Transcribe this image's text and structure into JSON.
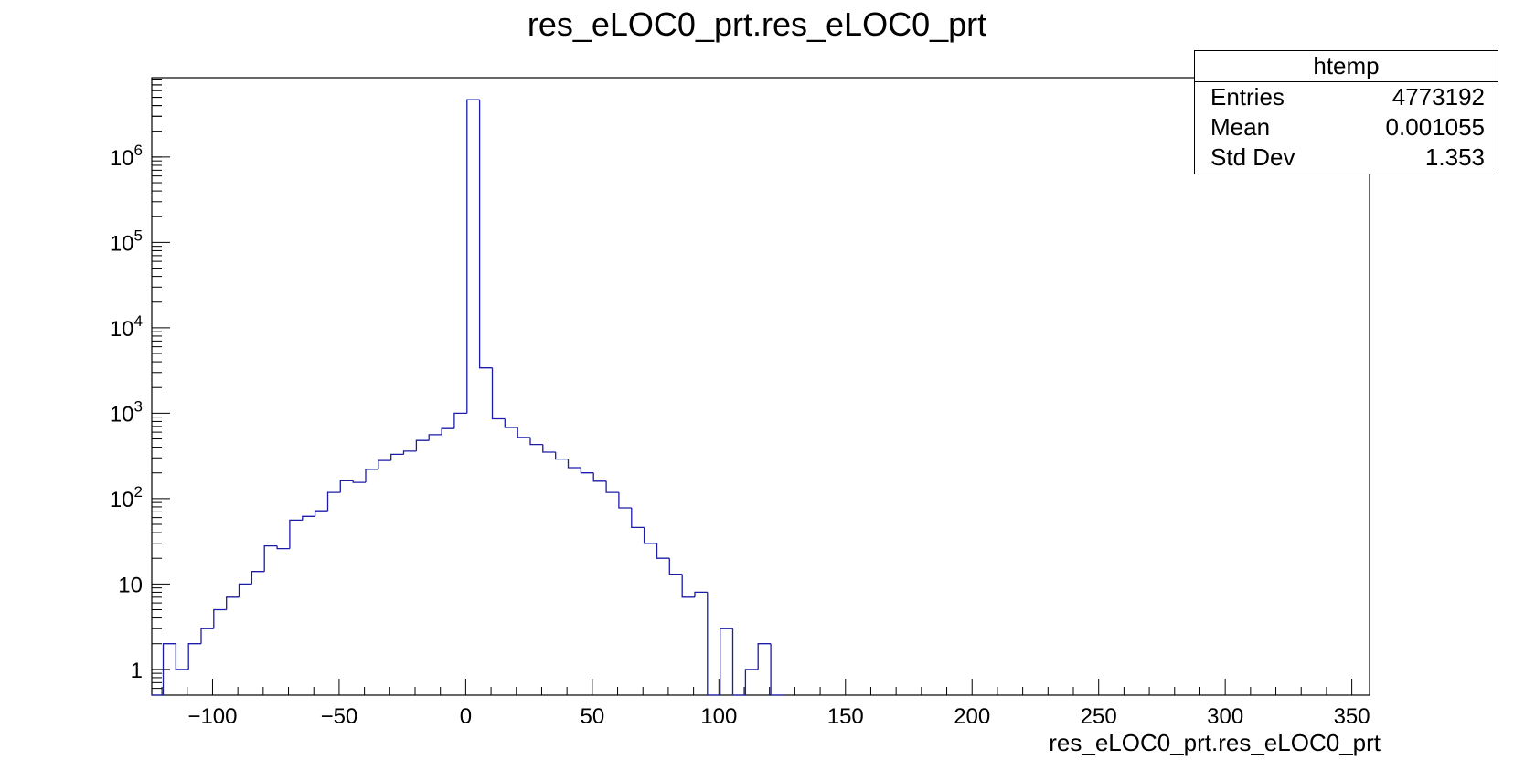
{
  "title": "res_eLOC0_prt.res_eLOC0_prt",
  "xlabel": "res_eLOC0_prt.res_eLOC0_prt",
  "stats": {
    "name": "htemp",
    "rows": [
      {
        "label": "Entries",
        "value": "4773192"
      },
      {
        "label": "Mean",
        "value": "0.001055"
      },
      {
        "label": "Std Dev",
        "value": "1.353"
      }
    ]
  },
  "colors": {
    "line": "#1c1ca8",
    "axis": "#000000"
  },
  "chart_data": {
    "type": "bar",
    "style": "step histogram",
    "title": "res_eLOC0_prt.res_eLOC0_prt",
    "xlabel": "res_eLOC0_prt.res_eLOC0_prt",
    "ylabel": "",
    "xlim": [
      -124,
      357
    ],
    "ylim": [
      0.5,
      8500000
    ],
    "y_scale": "log",
    "bin_width": 5,
    "x_ticks": [
      -100,
      -50,
      0,
      50,
      100,
      150,
      200,
      250,
      300,
      350
    ],
    "x_tick_labels": [
      "−100",
      "−50",
      "0",
      "50",
      "100",
      "150",
      "200",
      "250",
      "300",
      "350"
    ],
    "y_ticks": [
      1,
      10,
      100,
      1000,
      10000,
      100000,
      1000000
    ],
    "y_tick_labels": [
      "1",
      "10",
      "10^2",
      "10^3",
      "10^4",
      "10^5",
      "10^6"
    ],
    "bins": [
      {
        "x": -124,
        "y": 0
      },
      {
        "x": -119.5,
        "y": 2
      },
      {
        "x": -114.5,
        "y": 1
      },
      {
        "x": -109.5,
        "y": 2
      },
      {
        "x": -104.5,
        "y": 3
      },
      {
        "x": -99.5,
        "y": 5
      },
      {
        "x": -94.5,
        "y": 7
      },
      {
        "x": -89.5,
        "y": 10
      },
      {
        "x": -84.5,
        "y": 14
      },
      {
        "x": -79.5,
        "y": 28
      },
      {
        "x": -74.5,
        "y": 26
      },
      {
        "x": -69.5,
        "y": 56
      },
      {
        "x": -64.5,
        "y": 62
      },
      {
        "x": -59.5,
        "y": 72
      },
      {
        "x": -54.5,
        "y": 118
      },
      {
        "x": -49.5,
        "y": 162
      },
      {
        "x": -44.5,
        "y": 155
      },
      {
        "x": -39.5,
        "y": 220
      },
      {
        "x": -34.5,
        "y": 280
      },
      {
        "x": -29.5,
        "y": 330
      },
      {
        "x": -24.5,
        "y": 360
      },
      {
        "x": -19.5,
        "y": 480
      },
      {
        "x": -14.5,
        "y": 560
      },
      {
        "x": -9.5,
        "y": 660
      },
      {
        "x": -4.5,
        "y": 1000
      },
      {
        "x": 0.5,
        "y": 4700000
      },
      {
        "x": 5.5,
        "y": 3400
      },
      {
        "x": 10.5,
        "y": 860
      },
      {
        "x": 15.5,
        "y": 680
      },
      {
        "x": 20.5,
        "y": 520
      },
      {
        "x": 25.5,
        "y": 430
      },
      {
        "x": 30.5,
        "y": 350
      },
      {
        "x": 35.5,
        "y": 290
      },
      {
        "x": 40.5,
        "y": 230
      },
      {
        "x": 45.5,
        "y": 200
      },
      {
        "x": 50.5,
        "y": 160
      },
      {
        "x": 55.5,
        "y": 118
      },
      {
        "x": 60.5,
        "y": 78
      },
      {
        "x": 65.5,
        "y": 46
      },
      {
        "x": 70.5,
        "y": 30
      },
      {
        "x": 75.5,
        "y": 20
      },
      {
        "x": 80.5,
        "y": 13
      },
      {
        "x": 85.5,
        "y": 7
      },
      {
        "x": 90.5,
        "y": 8
      },
      {
        "x": 95.5,
        "y": 0
      },
      {
        "x": 100.5,
        "y": 3
      },
      {
        "x": 105.5,
        "y": 0
      },
      {
        "x": 110.5,
        "y": 1
      },
      {
        "x": 115.5,
        "y": 2
      },
      {
        "x": 120.5,
        "y": 0
      }
    ]
  }
}
